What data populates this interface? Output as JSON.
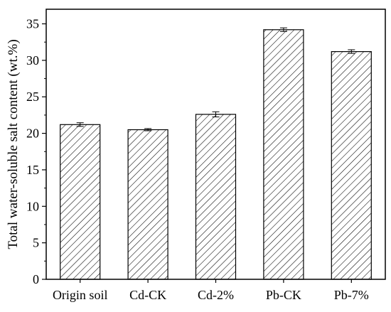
{
  "chart_data": {
    "type": "bar",
    "title": "",
    "xlabel": "",
    "ylabel": "Total water-soluble salt content (wt.%)",
    "categories": [
      "Origin soil",
      "Cd-CK",
      "Cd-2%",
      "Pb-CK",
      "Pb-7%"
    ],
    "values": [
      21.2,
      20.5,
      22.6,
      34.2,
      31.2
    ],
    "errors": [
      0.25,
      0.15,
      0.35,
      0.25,
      0.25
    ],
    "ylim": [
      0,
      37
    ],
    "yticks": [
      0,
      5,
      10,
      15,
      20,
      25,
      30,
      35
    ],
    "ytick_labels": [
      "0",
      "5",
      "10",
      "15",
      "20",
      "25",
      "30",
      "35"
    ],
    "grid": false,
    "bar_fill": "hatched",
    "colors": {
      "bar_stroke": "#000000",
      "hatch": "#000000",
      "background": "#ffffff"
    }
  }
}
